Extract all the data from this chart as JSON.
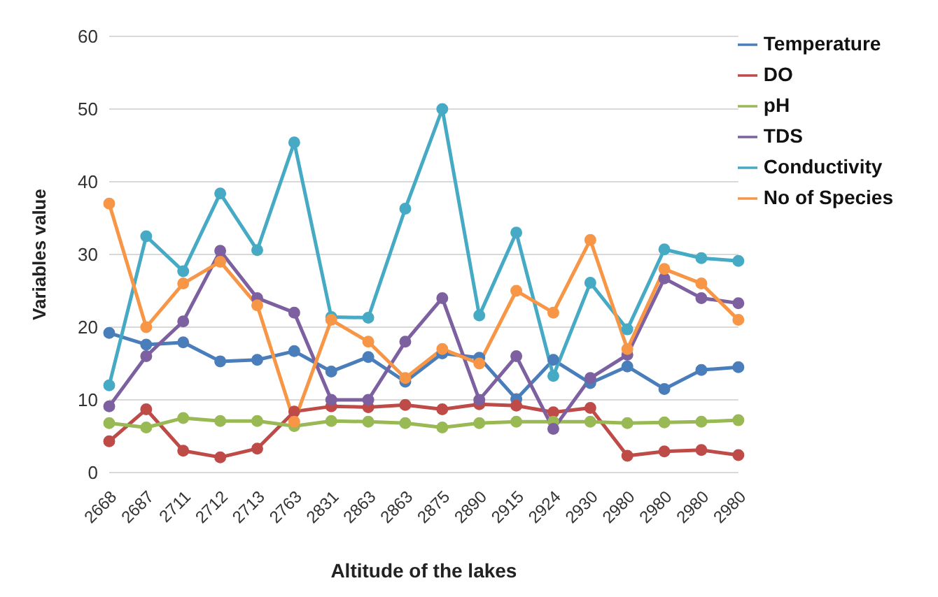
{
  "chart_data": {
    "type": "line",
    "xlabel": "Altitude of the lakes",
    "ylabel": "Variables value",
    "categories": [
      "2668",
      "2687",
      "2711",
      "2712",
      "2713",
      "2763",
      "2831",
      "2863",
      "2863",
      "2875",
      "2890",
      "2915",
      "2924",
      "2930",
      "2980",
      "2980",
      "2980",
      "2980"
    ],
    "series": [
      {
        "name": "Temperature",
        "color": "#4a7ebb",
        "values": [
          19.2,
          17.6,
          17.9,
          15.3,
          15.5,
          16.7,
          13.9,
          15.9,
          12.5,
          16.4,
          15.8,
          10.1,
          15.5,
          12.3,
          14.6,
          11.5,
          14.1,
          14.5
        ]
      },
      {
        "name": "DO",
        "color": "#be4b48",
        "values": [
          4.3,
          8.7,
          3.0,
          2.1,
          3.3,
          8.4,
          9.1,
          9.0,
          9.3,
          8.7,
          9.4,
          9.2,
          8.3,
          8.9,
          2.3,
          2.9,
          3.1,
          2.4
        ]
      },
      {
        "name": "pH",
        "color": "#98b954",
        "values": [
          6.8,
          6.2,
          7.5,
          7.1,
          7.1,
          6.4,
          7.1,
          7.0,
          6.8,
          6.2,
          6.8,
          7.0,
          7.0,
          7.0,
          6.8,
          6.9,
          7.0,
          7.2
        ]
      },
      {
        "name": "TDS",
        "color": "#7d60a0",
        "values": [
          9.1,
          16,
          20.8,
          30.5,
          24,
          22,
          10,
          10,
          18,
          24,
          10,
          16,
          6,
          13,
          16.2,
          26.7,
          24,
          23.3
        ]
      },
      {
        "name": "Conductivity",
        "color": "#46aac5",
        "values": [
          12,
          32.5,
          27.7,
          38.4,
          30.6,
          45.4,
          21.4,
          21.3,
          36.3,
          50,
          21.6,
          33,
          13.3,
          26.1,
          19.7,
          30.7,
          29.5,
          29.1
        ]
      },
      {
        "name": "No of Species",
        "color": "#f79646",
        "values": [
          37,
          20,
          26,
          29,
          23,
          7,
          21,
          18,
          13,
          17,
          15,
          25,
          22,
          32,
          17,
          28,
          26,
          21
        ]
      }
    ],
    "ylim": [
      0,
      60
    ],
    "yticks": [
      0,
      10,
      20,
      30,
      40,
      50,
      60
    ],
    "grid": "y",
    "legend": "top right",
    "marker": "circle",
    "line_style": "solid"
  }
}
